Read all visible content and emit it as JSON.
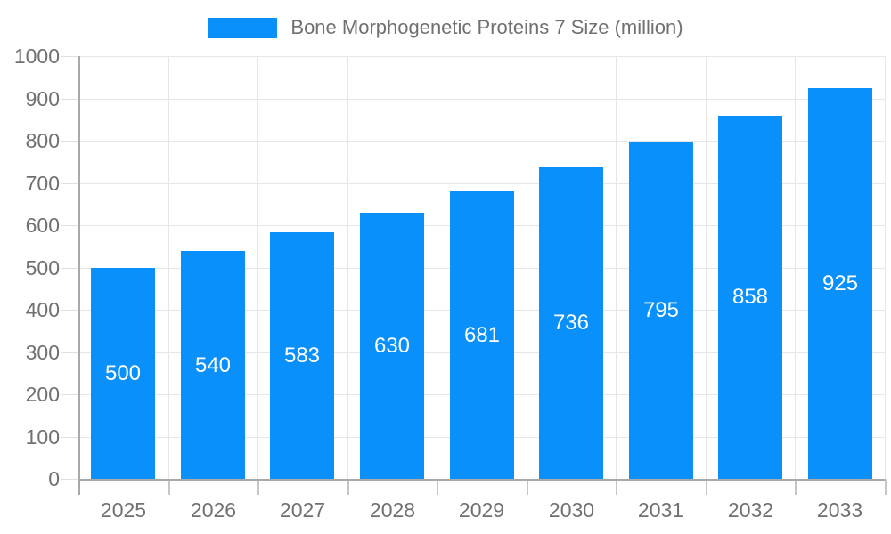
{
  "legend": {
    "items": [
      {
        "label": "Bone Morphogenetic Proteins 7 Size (million)",
        "color": "#0a90fa"
      }
    ]
  },
  "chart_data": {
    "type": "bar",
    "title": "Bone Morphogenetic Proteins 7 Size (million)",
    "categories": [
      "2025",
      "2026",
      "2027",
      "2028",
      "2029",
      "2030",
      "2031",
      "2032",
      "2033"
    ],
    "series": [
      {
        "name": "Bone Morphogenetic Proteins 7 Size (million)",
        "values": [
          500,
          540,
          583,
          630,
          681,
          736,
          795,
          858,
          925
        ]
      }
    ],
    "xlabel": "",
    "ylabel": "",
    "ylim": [
      0,
      1000
    ],
    "ytick_step": 100,
    "grid": true,
    "legend_position": "top",
    "bar_labels_shown": true,
    "colors": {
      "bar": "#0a90fa",
      "bar_label": "#ffffff",
      "axis_text": "#707070",
      "grid_line": "#e6e6e6",
      "tick_light": "#e0e0e0",
      "tick_dark": "#c6c6c6",
      "axis_line": "#a9a9a9",
      "background": "#ffffff"
    }
  }
}
